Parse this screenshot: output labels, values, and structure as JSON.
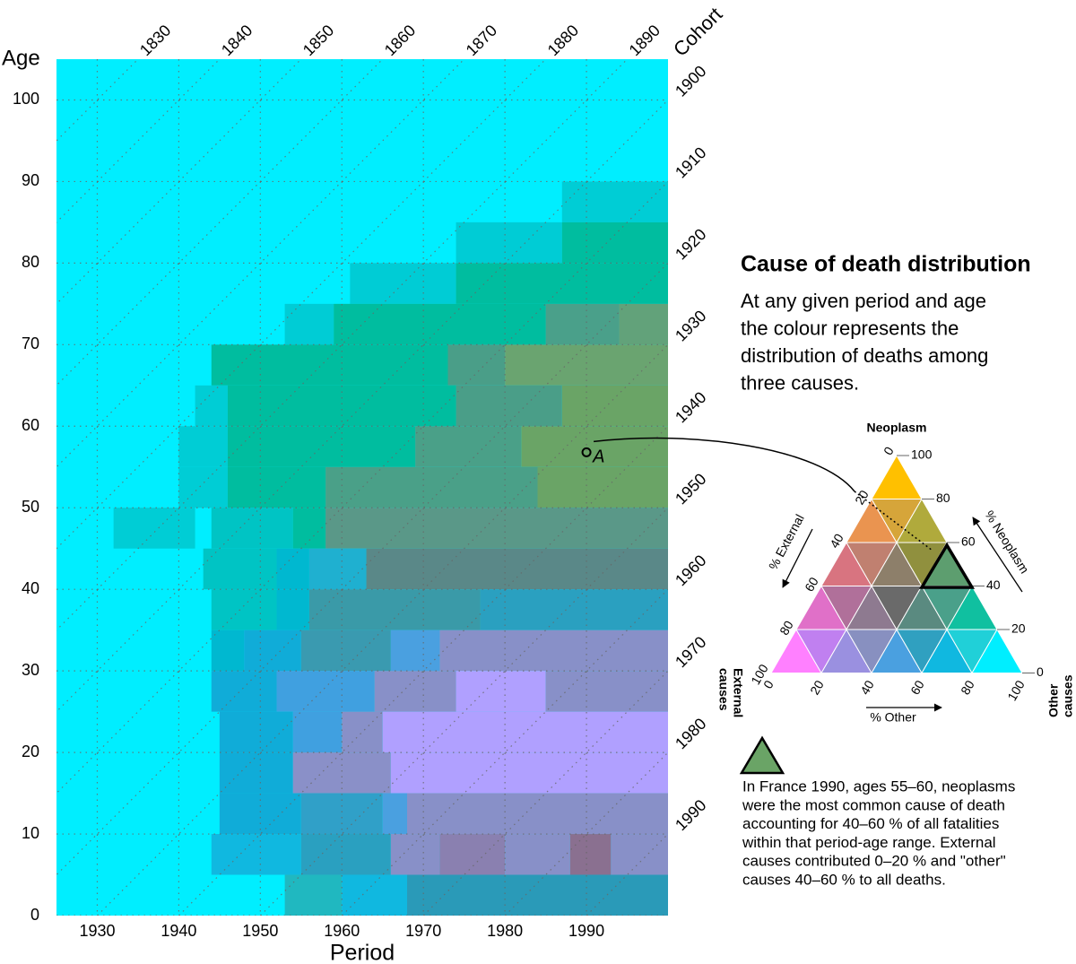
{
  "chart_data": {
    "type": "heatmap",
    "title": "Cause of death distribution",
    "description": [
      "At any given period and age",
      "the colour represents the",
      "distribution of deaths among",
      "three causes."
    ],
    "x_label": "Period",
    "y_label": "Age",
    "cohort_label": "Cohort",
    "xlim": [
      1925,
      2000
    ],
    "ylim": [
      0,
      105
    ],
    "xticks": [
      1930,
      1940,
      1950,
      1960,
      1970,
      1980,
      1990
    ],
    "yticks": [
      0,
      10,
      20,
      30,
      40,
      50,
      60,
      70,
      80,
      90,
      100
    ],
    "cohorts": [
      1830,
      1840,
      1850,
      1860,
      1870,
      1880,
      1890,
      1900,
      1910,
      1920,
      1930,
      1940,
      1950,
      1960,
      1970,
      1980,
      1990
    ],
    "grid": true,
    "cells": [
      {
        "period": [
          1925,
          2000
        ],
        "age": [
          0,
          105
        ],
        "color": "#00eeff"
      },
      {
        "period": [
          1987,
          2000
        ],
        "age": [
          85,
          90
        ],
        "color": "#00cdd5"
      },
      {
        "period": [
          1974,
          1987
        ],
        "age": [
          80,
          85
        ],
        "color": "#00ccd5"
      },
      {
        "period": [
          1987,
          2000
        ],
        "age": [
          80,
          85
        ],
        "color": "#00bd9f"
      },
      {
        "period": [
          1961,
          1974
        ],
        "age": [
          75,
          80
        ],
        "color": "#00ccd5"
      },
      {
        "period": [
          1974,
          2000
        ],
        "age": [
          75,
          80
        ],
        "color": "#00bd9f"
      },
      {
        "period": [
          1953,
          1959
        ],
        "age": [
          70,
          75
        ],
        "color": "#00ccd5"
      },
      {
        "period": [
          1959,
          1985
        ],
        "age": [
          70,
          75
        ],
        "color": "#00bd9f"
      },
      {
        "period": [
          1985,
          1994
        ],
        "age": [
          70,
          75
        ],
        "color": "#4aa08a"
      },
      {
        "period": [
          1994,
          2000
        ],
        "age": [
          70,
          75
        ],
        "color": "#62a27a"
      },
      {
        "period": [
          1944,
          1973
        ],
        "age": [
          65,
          70
        ],
        "color": "#00bd9f"
      },
      {
        "period": [
          1973,
          1980
        ],
        "age": [
          65,
          70
        ],
        "color": "#4a9e88"
      },
      {
        "period": [
          1980,
          2000
        ],
        "age": [
          65,
          70
        ],
        "color": "#6aa470"
      },
      {
        "period": [
          1942,
          1946
        ],
        "age": [
          60,
          65
        ],
        "color": "#00cdd5"
      },
      {
        "period": [
          1946,
          1974
        ],
        "age": [
          60,
          65
        ],
        "color": "#00bd9f"
      },
      {
        "period": [
          1974,
          1987
        ],
        "age": [
          60,
          65
        ],
        "color": "#4a9e88"
      },
      {
        "period": [
          1987,
          2000
        ],
        "age": [
          60,
          65
        ],
        "color": "#6aa466"
      },
      {
        "period": [
          1940,
          1946
        ],
        "age": [
          55,
          60
        ],
        "color": "#00cdd5"
      },
      {
        "period": [
          1946,
          1969
        ],
        "age": [
          55,
          60
        ],
        "color": "#00bd9f"
      },
      {
        "period": [
          1969,
          1982
        ],
        "age": [
          55,
          60
        ],
        "color": "#4aa088"
      },
      {
        "period": [
          1982,
          2000
        ],
        "age": [
          55,
          60
        ],
        "color": "#6aa466"
      },
      {
        "period": [
          1940,
          1946
        ],
        "age": [
          50,
          55
        ],
        "color": "#00cdd5"
      },
      {
        "period": [
          1946,
          1958
        ],
        "age": [
          50,
          55
        ],
        "color": "#00bd9f"
      },
      {
        "period": [
          1958,
          1984
        ],
        "age": [
          50,
          55
        ],
        "color": "#4aa088"
      },
      {
        "period": [
          1984,
          2000
        ],
        "age": [
          50,
          55
        ],
        "color": "#6aa466"
      },
      {
        "period": [
          1932,
          1942
        ],
        "age": [
          45,
          50
        ],
        "color": "#00cdd5"
      },
      {
        "period": [
          1944,
          1954
        ],
        "age": [
          45,
          50
        ],
        "color": "#00c4c4"
      },
      {
        "period": [
          1954,
          1958
        ],
        "age": [
          45,
          50
        ],
        "color": "#00bd9f"
      },
      {
        "period": [
          1958,
          2000
        ],
        "age": [
          45,
          50
        ],
        "color": "#5a9888"
      },
      {
        "period": [
          1943,
          1952
        ],
        "age": [
          40,
          45
        ],
        "color": "#00c4c4"
      },
      {
        "period": [
          1952,
          1956
        ],
        "age": [
          40,
          45
        ],
        "color": "#00b8d0"
      },
      {
        "period": [
          1956,
          1963
        ],
        "age": [
          40,
          45
        ],
        "color": "#1fb0d0"
      },
      {
        "period": [
          1963,
          2000
        ],
        "age": [
          40,
          45
        ],
        "color": "#5a8888"
      },
      {
        "period": [
          1944,
          1952
        ],
        "age": [
          35,
          40
        ],
        "color": "#00c4c4"
      },
      {
        "period": [
          1952,
          1956
        ],
        "age": [
          35,
          40
        ],
        "color": "#00b8d0"
      },
      {
        "period": [
          1956,
          1977
        ],
        "age": [
          35,
          40
        ],
        "color": "#3a9aa8"
      },
      {
        "period": [
          1977,
          2000
        ],
        "age": [
          35,
          40
        ],
        "color": "#2aa0c0"
      },
      {
        "period": [
          1944,
          1948
        ],
        "age": [
          30,
          35
        ],
        "color": "#00b8d0"
      },
      {
        "period": [
          1948,
          1955
        ],
        "age": [
          30,
          35
        ],
        "color": "#10acd8"
      },
      {
        "period": [
          1955,
          1966
        ],
        "age": [
          30,
          35
        ],
        "color": "#3a9ab0"
      },
      {
        "period": [
          1966,
          1972
        ],
        "age": [
          30,
          35
        ],
        "color": "#4aa0e0"
      },
      {
        "period": [
          1972,
          2000
        ],
        "age": [
          30,
          35
        ],
        "color": "#8890c8"
      },
      {
        "period": [
          1944,
          1952
        ],
        "age": [
          25,
          30
        ],
        "color": "#10acd8"
      },
      {
        "period": [
          1952,
          1964
        ],
        "age": [
          25,
          30
        ],
        "color": "#40a0e0"
      },
      {
        "period": [
          1964,
          1974
        ],
        "age": [
          25,
          30
        ],
        "color": "#8890c8"
      },
      {
        "period": [
          1974,
          1985
        ],
        "age": [
          25,
          30
        ],
        "color": "#b0a0ff"
      },
      {
        "period": [
          1985,
          2000
        ],
        "age": [
          25,
          30
        ],
        "color": "#8890c8"
      },
      {
        "period": [
          1945,
          1954
        ],
        "age": [
          20,
          25
        ],
        "color": "#10acd8"
      },
      {
        "period": [
          1954,
          1960
        ],
        "age": [
          20,
          25
        ],
        "color": "#40a0e0"
      },
      {
        "period": [
          1960,
          1965
        ],
        "age": [
          20,
          25
        ],
        "color": "#8890c8"
      },
      {
        "period": [
          1965,
          2000
        ],
        "age": [
          20,
          25
        ],
        "color": "#b0a0ff"
      },
      {
        "period": [
          1945,
          1954
        ],
        "age": [
          15,
          20
        ],
        "color": "#10acd8"
      },
      {
        "period": [
          1954,
          1966
        ],
        "age": [
          15,
          20
        ],
        "color": "#8a90c8"
      },
      {
        "period": [
          1966,
          2000
        ],
        "age": [
          15,
          20
        ],
        "color": "#b0a0ff"
      },
      {
        "period": [
          1945,
          1955
        ],
        "age": [
          10,
          15
        ],
        "color": "#10acd8"
      },
      {
        "period": [
          1955,
          1965
        ],
        "age": [
          10,
          15
        ],
        "color": "#30a0c8"
      },
      {
        "period": [
          1965,
          1968
        ],
        "age": [
          10,
          15
        ],
        "color": "#4aa0e0"
      },
      {
        "period": [
          1968,
          2000
        ],
        "age": [
          10,
          15
        ],
        "color": "#8890c8"
      },
      {
        "period": [
          1944,
          1955
        ],
        "age": [
          5,
          10
        ],
        "color": "#10b8e0"
      },
      {
        "period": [
          1955,
          1966
        ],
        "age": [
          5,
          10
        ],
        "color": "#2aa0c0"
      },
      {
        "period": [
          1966,
          1972
        ],
        "age": [
          5,
          10
        ],
        "color": "#8890c8"
      },
      {
        "period": [
          1972,
          1980
        ],
        "age": [
          5,
          10
        ],
        "color": "#8a80b0"
      },
      {
        "period": [
          1980,
          1988
        ],
        "age": [
          5,
          10
        ],
        "color": "#8890c8"
      },
      {
        "period": [
          1988,
          1993
        ],
        "age": [
          5,
          10
        ],
        "color": "#8a7090"
      },
      {
        "period": [
          1993,
          2000
        ],
        "age": [
          5,
          10
        ],
        "color": "#8890c8"
      },
      {
        "period": [
          1953,
          1960
        ],
        "age": [
          0,
          5
        ],
        "color": "#20b8c0"
      },
      {
        "period": [
          1960,
          1968
        ],
        "age": [
          0,
          5
        ],
        "color": "#10b8e0"
      },
      {
        "period": [
          1968,
          2000
        ],
        "age": [
          0,
          5
        ],
        "color": "#2a9ab8"
      }
    ],
    "annotation": {
      "label": "A",
      "period": 1990,
      "age": 56.8
    },
    "key": {
      "top_label": "Neoplasm",
      "left_label": [
        "External",
        "causes"
      ],
      "right_label": [
        "Other",
        "causes"
      ],
      "left_axis": "% External",
      "right_axis": "% Neoplasm",
      "bottom_axis": "% Other",
      "ticks": [
        0,
        20,
        40,
        60,
        80,
        100
      ],
      "colors": [
        [
          "#ffc000"
        ],
        [
          "#ea9450",
          "#d6a53a",
          "#b0aa3c"
        ],
        [
          "#d87480",
          "#c08070",
          "#8d7f6a",
          "#90903e",
          "#5d9e6f"
        ],
        [
          "#e070c8",
          "#b0709a",
          "#8e7a90",
          "#6a6a6a",
          "#5a8a80",
          "#4aa08a",
          "#10c0a0"
        ],
        [
          "#ff80ff",
          "#c080f0",
          "#9a90e0",
          "#8890c0",
          "#4aa0e0",
          "#30a0c0",
          "#10b8e0",
          "#20d0d8",
          "#00eeff"
        ]
      ]
    },
    "note": [
      "In France 1990, ages 55–60, neoplasms",
      "were the most common cause of death",
      "accounting for 40–60 % of all fatalities",
      "within that period-age range. External",
      "causes contributed 0–20 % and \"other\"",
      "causes 40–60 % to all deaths."
    ]
  }
}
